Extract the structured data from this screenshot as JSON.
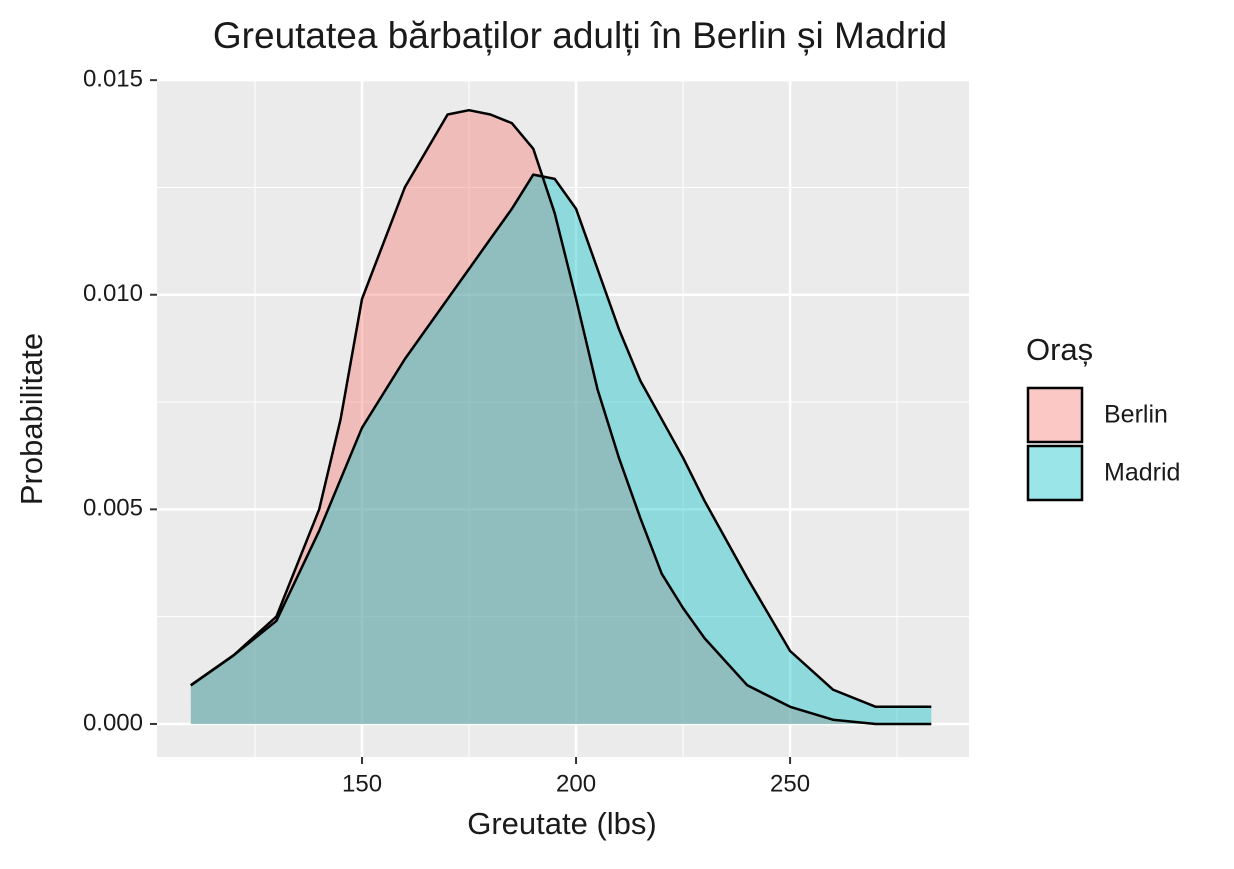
{
  "chart_data": {
    "type": "density",
    "title": "Greutatea bărbaților adulți în Berlin și Madrid",
    "x_label": "Greutate (lbs)",
    "y_label": "Probabilitate",
    "legend_title": "Oraș",
    "legend_position": "right",
    "x": [
      110,
      120,
      130,
      140,
      145,
      150,
      160,
      170,
      175,
      180,
      185,
      190,
      195,
      200,
      205,
      210,
      215,
      220,
      225,
      230,
      240,
      250,
      260,
      270,
      283
    ],
    "series": [
      {
        "name": "Berlin",
        "color": "#F8766D",
        "values": [
          0.0009,
          0.0016,
          0.0025,
          0.005,
          0.0071,
          0.0099,
          0.0125,
          0.0142,
          0.0143,
          0.0142,
          0.014,
          0.0134,
          0.0119,
          0.0099,
          0.0078,
          0.0062,
          0.0048,
          0.0035,
          0.0027,
          0.002,
          0.0009,
          0.0004,
          0.0001,
          0.0,
          0.0
        ]
      },
      {
        "name": "Madrid",
        "color": "#00BFC4",
        "values": [
          0.0009,
          0.0016,
          0.0024,
          0.0045,
          0.0057,
          0.0069,
          0.0085,
          0.0099,
          0.0106,
          0.0113,
          0.012,
          0.0128,
          0.0127,
          0.012,
          0.0106,
          0.0092,
          0.008,
          0.0071,
          0.0062,
          0.0052,
          0.0034,
          0.0017,
          0.0008,
          0.0004,
          0.0004
        ]
      }
    ],
    "fill_opacity": 0.4,
    "xlim": [
      102.1,
      291.8
    ],
    "ylim": [
      -0.00077,
      0.01498
    ],
    "xticks": [
      150,
      200,
      250
    ],
    "yticks": [
      {
        "value": 0,
        "label": "0.000"
      },
      {
        "value": 0.005,
        "label": "0.005"
      },
      {
        "value": 0.01,
        "label": "0.010"
      },
      {
        "value": 0.015,
        "label": "0.015"
      }
    ],
    "x_minor_grid": [
      125,
      175,
      225,
      275
    ],
    "y_minor_grid": [
      0.0025,
      0.0075,
      0.0125
    ],
    "grid": true
  }
}
